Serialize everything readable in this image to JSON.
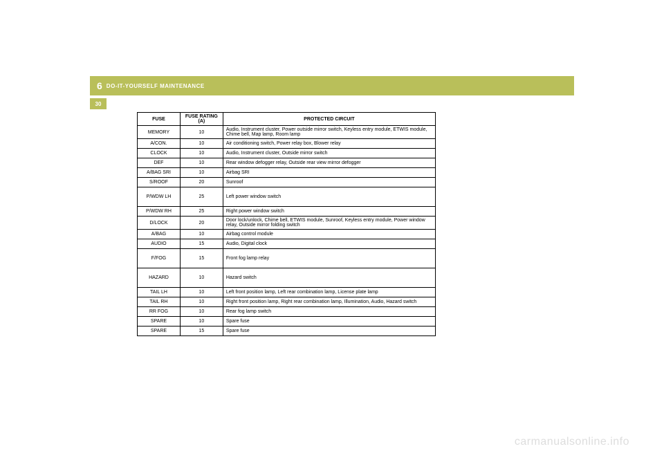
{
  "header": {
    "chapter_number": "6",
    "chapter_title": "DO-IT-YOURSELF MAINTENANCE",
    "page_number": "30"
  },
  "table": {
    "headers": {
      "fuse": "FUSE",
      "rating": "FUSE RATING (A)",
      "circuit": "PROTECTED CIRCUIT"
    },
    "rows": [
      {
        "fuse": "MEMORY",
        "rating": "10",
        "circuit": "Audio, Instrument cluster, Power outside mirror switch, Keyless entry module, ETWIS module, Chime bell, Map lamp, Room lamp"
      },
      {
        "fuse": "A/CON.",
        "rating": "10",
        "circuit": "Air conditioning switch, Power relay box, Blower relay"
      },
      {
        "fuse": "CLOCK",
        "rating": "10",
        "circuit": "Audio, Instrument cluster, Outside mirror switch"
      },
      {
        "fuse": "DEF",
        "rating": "10",
        "circuit": "Rear window defogger relay, Outside rear view mirror defogger"
      },
      {
        "fuse": "A/BAG SRI",
        "rating": "10",
        "circuit": "Airbag SRI"
      },
      {
        "fuse": "S/ROOF",
        "rating": "20",
        "circuit": "Sunroof"
      },
      {
        "fuse": "P/WDW LH",
        "rating": "25",
        "circuit": "Left power window switch"
      },
      {
        "fuse": "P/WDW RH",
        "rating": "25",
        "circuit": "Right power window switch"
      },
      {
        "fuse": "D/LOCK",
        "rating": "20",
        "circuit": "Door lock/unlock, Chime bell, ETWIS module, Sunroof, Keyless entry module, Power window relay, Outside mirror folding switch"
      },
      {
        "fuse": "A/BAG",
        "rating": "10",
        "circuit": "Airbag control module"
      },
      {
        "fuse": "AUDIO",
        "rating": "15",
        "circuit": "Audio, Digital clock"
      },
      {
        "fuse": "F/FOG",
        "rating": "15",
        "circuit": "Front fog lamp relay"
      },
      {
        "fuse": "HAZARD",
        "rating": "10",
        "circuit": "Hazard switch"
      },
      {
        "fuse": "TAIL LH",
        "rating": "10",
        "circuit": "Left front position lamp, Left rear combination lamp, License plate lamp"
      },
      {
        "fuse": "TAIL RH",
        "rating": "10",
        "circuit": "Right front position lamp, Right rear combination lamp, Illumination, Audio, Hazard switch"
      },
      {
        "fuse": "RR FOG",
        "rating": "10",
        "circuit": "Rear fog lamp switch"
      },
      {
        "fuse": "SPARE",
        "rating": "10",
        "circuit": "Spare fuse"
      },
      {
        "fuse": "SPARE",
        "rating": "15",
        "circuit": "Spare fuse"
      }
    ],
    "tall_rows": [
      6,
      11,
      12
    ]
  },
  "watermark": "carmanualsonline.info",
  "styles": {
    "accent": "#b9bf5a",
    "border": "#000000",
    "watermark_color": "#dddddd"
  }
}
